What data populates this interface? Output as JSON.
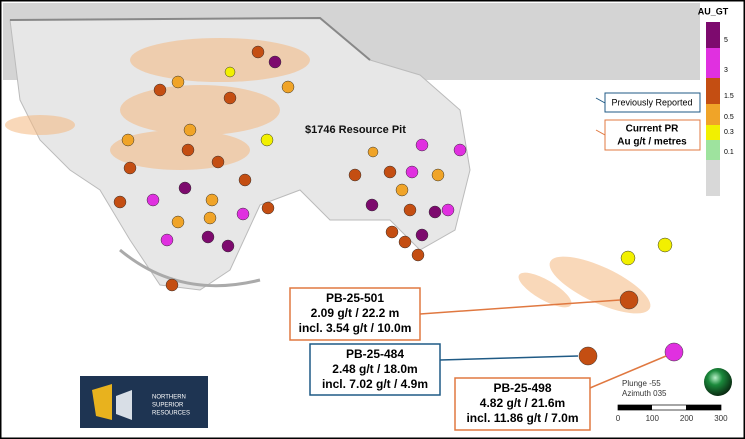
{
  "map": {
    "pit_label": "$1746 Resource Pit",
    "legend": {
      "title": "AU_GT",
      "entries": [
        {
          "label": "5",
          "color": "#7d0a6e"
        },
        {
          "label": "3",
          "color": "#e030e0"
        },
        {
          "label": "1.5",
          "color": "#c44e12"
        },
        {
          "label": "0.5",
          "color": "#f0a428"
        },
        {
          "label": "0.3",
          "color": "#f2f000"
        },
        {
          "label": "0.1",
          "color": "#9ee39e"
        }
      ]
    },
    "key": {
      "previous": "Previously Reported",
      "current_title": "Current PR",
      "current_sub": "Au g/t / metres"
    },
    "callouts": [
      {
        "hole": "PB-25-501",
        "line1": "2.09 g/t / 22.2 m",
        "line2": "incl. 3.54 g/t / 10.0m"
      },
      {
        "hole": "PB-25-484",
        "line1": "2.48 g/t  / 18.0m",
        "line2": "incl. 7.02 g/t / 4.9m"
      },
      {
        "hole": "PB-25-498",
        "line1": "4.82 g/t / 21.6m",
        "line2": "incl. 11.86 g/t / 7.0m"
      }
    ],
    "logo": {
      "line1": "NORTHERN",
      "line2": "SUPERIOR",
      "line3": "RESOURCES"
    },
    "orientation": {
      "plunge": "Plunge -55",
      "azimuth": "Azimuth 035"
    },
    "scale": {
      "ticks": [
        "0",
        "100",
        "200",
        "300"
      ]
    }
  }
}
